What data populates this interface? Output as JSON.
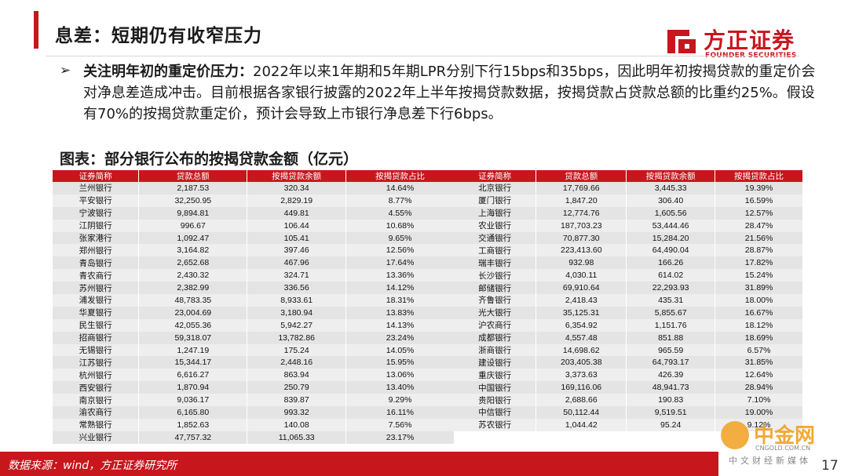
{
  "header": {
    "title": "息差：短期仍有收窄压力"
  },
  "logo": {
    "cn": "方正证券",
    "en": "FOUNDER SECURITIES",
    "color": "#c8161d"
  },
  "body": {
    "bullet": "➢",
    "lead": "关注明年初的重定价压力：",
    "text": "2022年以来1年期和5年期LPR分别下行15bps和35bps，因此明年初按揭贷款的重定价会对净息差造成冲击。目前根据各家银行披露的2022年上半年按揭贷款数据，按揭贷款占贷款总额的比重约25%。假设有70%的按揭贷款重定价，预计会导致上市银行净息差下行6bps。"
  },
  "figure": {
    "title": "图表：部分银行公布的按揭贷款金额（亿元）"
  },
  "table": {
    "headers": [
      "证券简称",
      "贷款总额",
      "按揭贷款余额",
      "按揭贷款占比"
    ],
    "left_rows": [
      [
        "兰州银行",
        "2,187.53",
        "320.34",
        "14.64%"
      ],
      [
        "平安银行",
        "32,250.95",
        "2,829.19",
        "8.77%"
      ],
      [
        "宁波银行",
        "9,894.81",
        "449.81",
        "4.55%"
      ],
      [
        "江阴银行",
        "996.67",
        "106.44",
        "10.68%"
      ],
      [
        "张家港行",
        "1,092.47",
        "105.41",
        "9.65%"
      ],
      [
        "郑州银行",
        "3,164.82",
        "397.46",
        "12.56%"
      ],
      [
        "青岛银行",
        "2,652.68",
        "467.96",
        "17.64%"
      ],
      [
        "青农商行",
        "2,430.32",
        "324.71",
        "13.36%"
      ],
      [
        "苏州银行",
        "2,382.99",
        "336.56",
        "14.12%"
      ],
      [
        "浦发银行",
        "48,783.35",
        "8,933.61",
        "18.31%"
      ],
      [
        "华夏银行",
        "23,004.69",
        "3,180.94",
        "13.83%"
      ],
      [
        "民生银行",
        "42,055.36",
        "5,942.27",
        "14.13%"
      ],
      [
        "招商银行",
        "59,318.07",
        "13,782.86",
        "23.24%"
      ],
      [
        "无锡银行",
        "1,247.19",
        "175.24",
        "14.05%"
      ],
      [
        "江苏银行",
        "15,344.17",
        "2,448.16",
        "15.95%"
      ],
      [
        "杭州银行",
        "6,616.27",
        "863.94",
        "13.06%"
      ],
      [
        "西安银行",
        "1,870.94",
        "250.79",
        "13.40%"
      ],
      [
        "南京银行",
        "9,036.17",
        "839.87",
        "9.29%"
      ],
      [
        "渝农商行",
        "6,165.80",
        "993.32",
        "16.11%"
      ],
      [
        "常熟银行",
        "1,852.63",
        "140.08",
        "7.56%"
      ],
      [
        "兴业银行",
        "47,757.32",
        "11,065.33",
        "23.17%"
      ]
    ],
    "right_rows": [
      [
        "北京银行",
        "17,769.66",
        "3,445.33",
        "19.39%"
      ],
      [
        "厦门银行",
        "1,847.20",
        "306.40",
        "16.59%"
      ],
      [
        "上海银行",
        "12,774.76",
        "1,605.56",
        "12.57%"
      ],
      [
        "农业银行",
        "187,703.23",
        "53,444.46",
        "28.47%"
      ],
      [
        "交通银行",
        "70,877.30",
        "15,284.20",
        "21.56%"
      ],
      [
        "工商银行",
        "223,413.60",
        "64,490.04",
        "28.87%"
      ],
      [
        "瑞丰银行",
        "932.98",
        "166.26",
        "17.82%"
      ],
      [
        "长沙银行",
        "4,030.11",
        "614.02",
        "15.24%"
      ],
      [
        "邮储银行",
        "69,910.64",
        "22,293.93",
        "31.89%"
      ],
      [
        "齐鲁银行",
        "2,418.43",
        "435.31",
        "18.00%"
      ],
      [
        "光大银行",
        "35,125.31",
        "5,855.67",
        "16.67%"
      ],
      [
        "沪农商行",
        "6,354.92",
        "1,151.76",
        "18.12%"
      ],
      [
        "成都银行",
        "4,557.48",
        "851.88",
        "18.69%"
      ],
      [
        "浙商银行",
        "14,698.62",
        "965.59",
        "6.57%"
      ],
      [
        "建设银行",
        "203,405.38",
        "64,793.17",
        "31.85%"
      ],
      [
        "重庆银行",
        "3,373.63",
        "426.39",
        "12.64%"
      ],
      [
        "中国银行",
        "169,116.06",
        "48,941.73",
        "28.94%"
      ],
      [
        "贵阳银行",
        "2,688.66",
        "190.83",
        "7.10%"
      ],
      [
        "中信银行",
        "50,112.44",
        "9,519.51",
        "19.00%"
      ],
      [
        "苏农银行",
        "1,044.42",
        "95.24",
        "9.12%"
      ]
    ]
  },
  "footer": {
    "source": "数据来源：wind，方正证券研究所",
    "page": "17"
  },
  "watermark": {
    "cn": "中金网",
    "en": "CNGOLD.COM.CN",
    "sub": "中文财经新媒体"
  }
}
